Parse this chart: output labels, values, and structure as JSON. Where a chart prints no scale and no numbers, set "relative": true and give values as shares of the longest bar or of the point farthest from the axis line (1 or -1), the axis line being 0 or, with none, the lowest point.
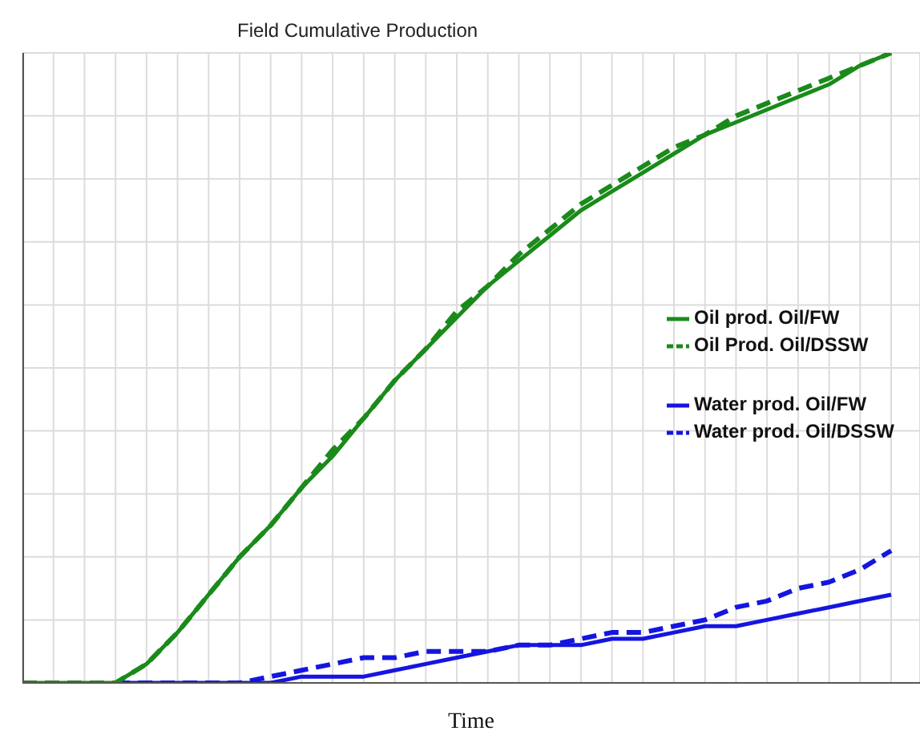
{
  "chart_data": {
    "type": "line",
    "title": "Field Cumulative Production",
    "xlabel": "Time",
    "relative": true,
    "grid": true,
    "legend": "right",
    "marker": "none",
    "categories": [
      null,
      null,
      null,
      null,
      null,
      null,
      null,
      null,
      null,
      null,
      null,
      null,
      null,
      null,
      null,
      null,
      null,
      null,
      null,
      null,
      null,
      null,
      null,
      null,
      null,
      null,
      null,
      null,
      null
    ],
    "series": [
      {
        "name": "Oil prod. Oil/FW",
        "color": "#1a8a1a",
        "line_style": "solid",
        "values": [
          0,
          0,
          0,
          0,
          0.03,
          0.08,
          0.14,
          0.2,
          0.25,
          0.31,
          0.36,
          0.42,
          0.48,
          0.53,
          0.58,
          0.63,
          0.67,
          0.71,
          0.75,
          0.78,
          0.81,
          0.84,
          0.87,
          0.89,
          0.91,
          0.93,
          0.95,
          0.98,
          1
        ]
      },
      {
        "name": "Oil Prod. Oil/DSSW",
        "color": "#1a8a1a",
        "line_style": "dashed",
        "values": [
          0,
          0,
          0,
          0,
          0.03,
          0.08,
          0.14,
          0.2,
          0.25,
          0.31,
          0.37,
          0.42,
          0.48,
          0.53,
          0.59,
          0.63,
          0.68,
          0.72,
          0.76,
          0.79,
          0.82,
          0.85,
          0.87,
          0.9,
          0.92,
          0.94,
          0.96,
          0.98,
          1
        ]
      },
      {
        "name": "Water prod. Oil/FW",
        "color": "#1515e0",
        "line_style": "solid",
        "values": [
          null,
          null,
          null,
          0,
          0,
          0,
          0,
          0,
          0,
          0.01,
          0.01,
          0.01,
          0.02,
          0.03,
          0.04,
          0.05,
          0.06,
          0.06,
          0.06,
          0.07,
          0.07,
          0.08,
          0.09,
          0.09,
          0.1,
          0.11,
          0.12,
          0.13,
          0.14
        ]
      },
      {
        "name": "Water prod. Oil/DSSW",
        "color": "#1515e0",
        "line_style": "dashed",
        "values": [
          null,
          null,
          null,
          0,
          0,
          0,
          0,
          0,
          0.01,
          0.02,
          0.03,
          0.04,
          0.04,
          0.05,
          0.05,
          0.05,
          0.06,
          0.06,
          0.07,
          0.08,
          0.08,
          0.09,
          0.1,
          0.12,
          0.13,
          0.15,
          0.16,
          0.18,
          0.21
        ]
      }
    ]
  }
}
